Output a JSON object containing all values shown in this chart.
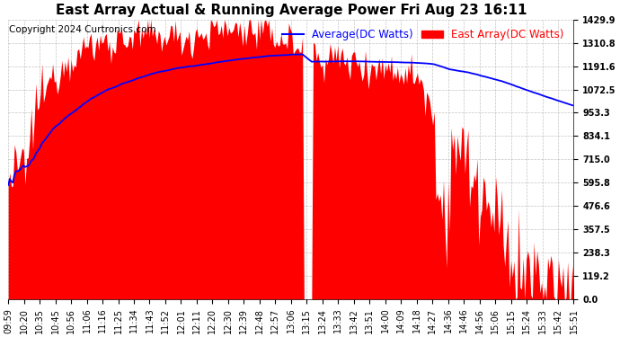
{
  "title": "East Array Actual & Running Average Power Fri Aug 23 16:11",
  "copyright": "Copyright 2024 Curtronics.com",
  "legend_avg": "Average(DC Watts)",
  "legend_east": "East Array(DC Watts)",
  "avg_color": "#0000ff",
  "east_color": "#ff0000",
  "fill_color": "#ff0000",
  "bg_color": "white",
  "grid_color": "#aaaaaa",
  "title_fontsize": 11,
  "copyright_fontsize": 7.5,
  "legend_fontsize": 8.5,
  "tick_fontsize": 7,
  "ytick_values": [
    0.0,
    119.2,
    238.3,
    357.5,
    476.6,
    595.8,
    715.0,
    834.1,
    953.3,
    1072.5,
    1191.6,
    1310.8,
    1429.9
  ],
  "ymax": 1429.9,
  "ymin": 0.0,
  "num_points": 370,
  "tick_labels": [
    "09:59",
    "10:20",
    "10:35",
    "10:45",
    "10:56",
    "11:06",
    "11:16",
    "11:25",
    "11:34",
    "11:43",
    "11:52",
    "12:01",
    "12:11",
    "12:20",
    "12:30",
    "12:39",
    "12:48",
    "12:57",
    "13:06",
    "13:15",
    "13:24",
    "13:33",
    "13:42",
    "13:51",
    "14:00",
    "14:09",
    "14:18",
    "14:27",
    "14:36",
    "14:46",
    "14:56",
    "15:06",
    "15:15",
    "15:24",
    "15:33",
    "15:42",
    "15:51"
  ]
}
